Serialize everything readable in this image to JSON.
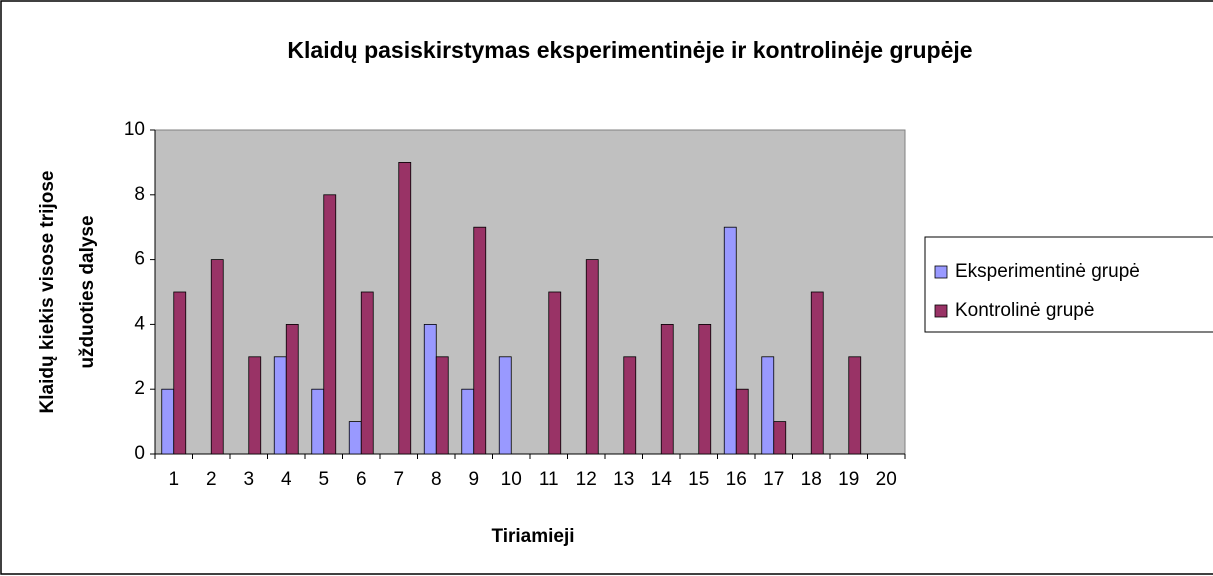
{
  "chart_data": {
    "type": "bar",
    "title": "Klaidų pasiskirstymas eksperimentinėje ir kontrolinėje grupėje",
    "ylabel": [
      "Klaidų kiekis visose trijose",
      "užduoties dalyse"
    ],
    "xlabel": "Tiriamieji",
    "categories": [
      "1",
      "2",
      "3",
      "4",
      "5",
      "6",
      "7",
      "8",
      "9",
      "10",
      "11",
      "12",
      "13",
      "14",
      "15",
      "16",
      "17",
      "18",
      "19",
      "20"
    ],
    "series": [
      {
        "name": "Eksperimentinė grupė",
        "color": "#9999ff",
        "values": [
          2,
          0,
          0,
          3,
          2,
          1,
          0,
          4,
          2,
          3,
          0,
          0,
          0,
          0,
          0,
          7,
          3,
          0,
          0,
          0
        ]
      },
      {
        "name": "Kontrolinė grupė",
        "color": "#993366",
        "values": [
          5,
          6,
          3,
          4,
          8,
          5,
          9,
          3,
          7,
          0,
          5,
          6,
          3,
          4,
          4,
          2,
          1,
          5,
          3,
          0
        ]
      }
    ],
    "ylim": [
      0,
      10
    ],
    "yticks": [
      0,
      2,
      4,
      6,
      8,
      10
    ],
    "grid": false,
    "legend": "right"
  }
}
